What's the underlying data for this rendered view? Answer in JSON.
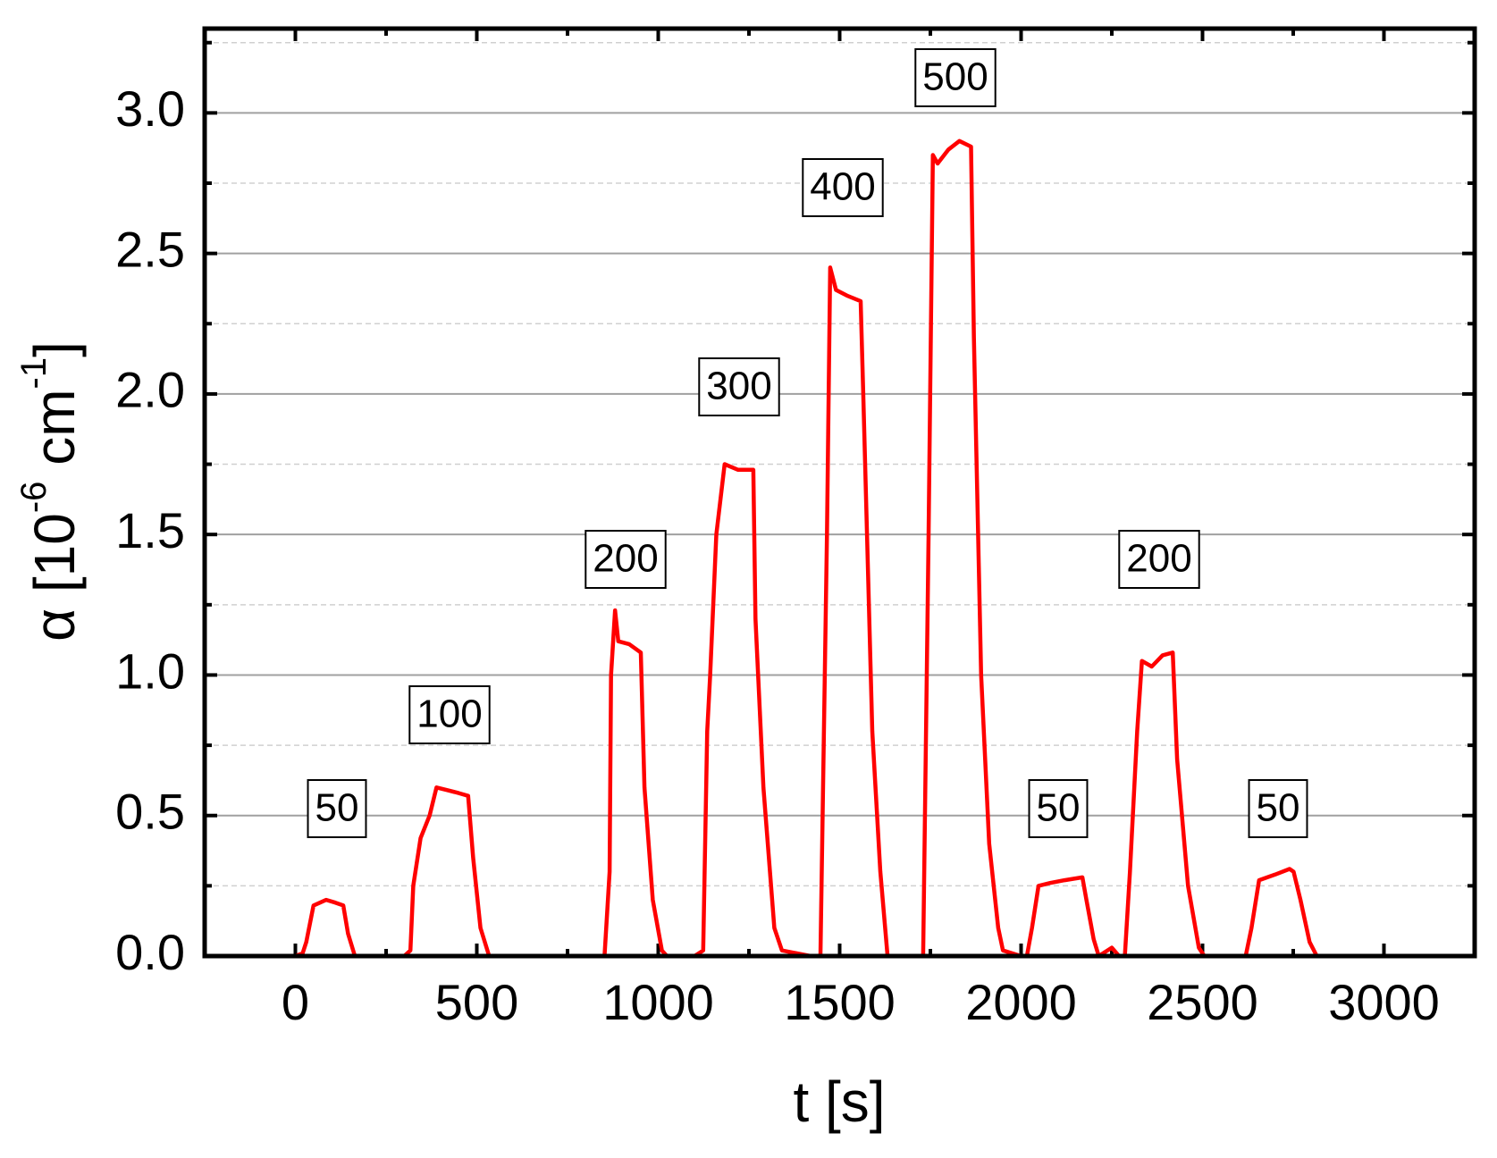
{
  "chart_data": {
    "type": "line",
    "xlabel": "t [s]",
    "ylabel": [
      "α [10",
      "-6",
      " cm",
      "-1",
      "]"
    ],
    "xlim": [
      -250,
      3250
    ],
    "ylim": [
      0,
      3.3
    ],
    "xticks": [
      0,
      500,
      1000,
      1500,
      2000,
      2500,
      3000
    ],
    "minor_xticks": [
      -250,
      250,
      750,
      1250,
      1750,
      2250,
      2750,
      3250
    ],
    "yticks": [
      {
        "value": 0,
        "label": "0.0"
      },
      0.5,
      {
        "value": 1,
        "label": "1.0"
      },
      1.5,
      {
        "value": 2,
        "label": "2.0"
      },
      2.5,
      {
        "value": 3,
        "label": "3.0"
      }
    ],
    "minor_yticks": [
      0.25,
      0.75,
      1.25,
      1.75,
      2.25,
      2.75,
      3.25
    ],
    "grid": true,
    "annotations": [
      "50",
      "100",
      "200",
      "300",
      "400",
      "500",
      "50",
      "200",
      "50"
    ],
    "series": [
      {
        "color": "#ff0000",
        "x": [
          0,
          20,
          30,
          50,
          85,
          110,
          132,
          145,
          164,
          250,
          300,
          317,
          325,
          345,
          370,
          389,
          420,
          450,
          476,
          490,
          510,
          534,
          600,
          700,
          852,
          866,
          870,
          881,
          890,
          920,
          952,
          962,
          985,
          1010,
          1024,
          1100,
          1124,
          1135,
          1143,
          1160,
          1183,
          1220,
          1262,
          1268,
          1290,
          1320,
          1341,
          1420,
          1447,
          1465,
          1474,
          1490,
          1520,
          1558,
          1565,
          1590,
          1612,
          1632,
          1700,
          1730,
          1745,
          1757,
          1770,
          1800,
          1830,
          1862,
          1870,
          1890,
          1912,
          1937,
          1950,
          2000,
          2016,
          2030,
          2048,
          2080,
          2120,
          2169,
          2180,
          2200,
          2214,
          2250,
          2270,
          2286,
          2300,
          2320,
          2333,
          2360,
          2390,
          2418,
          2430,
          2460,
          2490,
          2505,
          2600,
          2619,
          2635,
          2656,
          2700,
          2740,
          2751,
          2770,
          2795,
          2815,
          2849
        ],
        "values": [
          0,
          0.01,
          0.05,
          0.18,
          0.2,
          0.19,
          0.18,
          0.08,
          0,
          0,
          0,
          0.02,
          0.25,
          0.42,
          0.5,
          0.6,
          0.59,
          0.58,
          0.57,
          0.35,
          0.1,
          0,
          0,
          0,
          0,
          0.3,
          1.0,
          1.23,
          1.12,
          1.11,
          1.08,
          0.6,
          0.2,
          0.02,
          0,
          0,
          0.02,
          0.8,
          1.0,
          1.5,
          1.75,
          1.73,
          1.73,
          1.2,
          0.6,
          0.1,
          0.02,
          0,
          0,
          1.5,
          2.45,
          2.37,
          2.35,
          2.33,
          2.0,
          0.8,
          0.3,
          0,
          0,
          0,
          1.5,
          2.85,
          2.82,
          2.87,
          2.9,
          2.88,
          2.2,
          1.0,
          0.4,
          0.1,
          0.02,
          0,
          0,
          0.1,
          0.25,
          0.26,
          0.27,
          0.28,
          0.2,
          0.06,
          0,
          0.03,
          0,
          0,
          0.3,
          0.8,
          1.05,
          1.03,
          1.07,
          1.08,
          0.7,
          0.25,
          0.03,
          0,
          0,
          0,
          0.1,
          0.27,
          0.29,
          0.31,
          0.3,
          0.2,
          0.05,
          0,
          0
        ]
      }
    ]
  }
}
